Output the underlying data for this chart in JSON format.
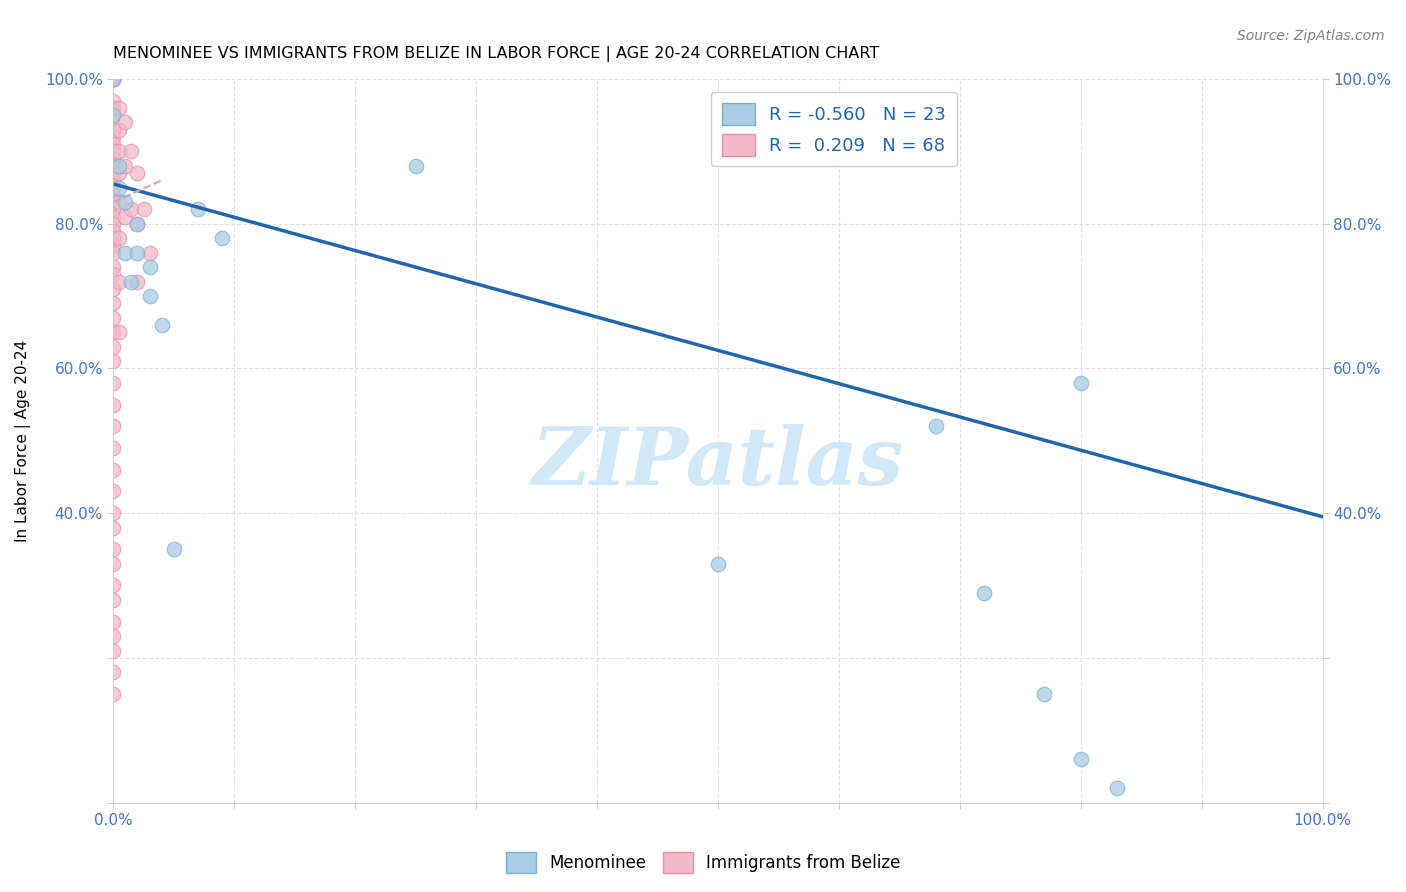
{
  "title": "MENOMINEE VS IMMIGRANTS FROM BELIZE IN LABOR FORCE | AGE 20-24 CORRELATION CHART",
  "source": "Source: ZipAtlas.com",
  "xlabel": "",
  "ylabel": "In Labor Force | Age 20-24",
  "xlim": [
    0,
    1
  ],
  "ylim": [
    0,
    1
  ],
  "xtick_labels": [
    "0.0%",
    "",
    "",
    "",
    "",
    "",
    "",
    "",
    "",
    "",
    "100.0%"
  ],
  "xtick_vals": [
    0.0,
    0.1,
    0.2,
    0.3,
    0.4,
    0.5,
    0.6,
    0.7,
    0.8,
    0.9,
    1.0
  ],
  "ytick_vals": [
    0.0,
    0.2,
    0.4,
    0.6,
    0.8,
    1.0
  ],
  "ytick_labels_left": [
    "",
    "",
    "40.0%",
    "60.0%",
    "80.0%",
    "100.0%"
  ],
  "ytick_labels_right": [
    "",
    "",
    "40.0%",
    "60.0%",
    "80.0%",
    "100.0%"
  ],
  "blue_color": "#a8cce0",
  "pink_color": "#f4b8c8",
  "blue_edge": "#7bafd4",
  "pink_edge": "#e88fa8",
  "blue_label": "Menominee",
  "pink_label": "Immigrants from Belize",
  "R_blue": -0.56,
  "N_blue": 23,
  "R_pink": 0.209,
  "N_pink": 68,
  "blue_x": [
    0.0,
    0.0,
    0.005,
    0.005,
    0.01,
    0.01,
    0.015,
    0.02,
    0.02,
    0.03,
    0.03,
    0.04,
    0.05,
    0.07,
    0.09,
    0.25,
    0.5,
    0.68,
    0.72,
    0.77,
    0.8,
    0.8,
    0.83
  ],
  "blue_y": [
    1.0,
    0.95,
    0.88,
    0.85,
    0.83,
    0.76,
    0.72,
    0.8,
    0.76,
    0.74,
    0.7,
    0.66,
    0.35,
    0.82,
    0.78,
    0.88,
    0.33,
    0.52,
    0.29,
    0.15,
    0.58,
    0.06,
    0.02
  ],
  "pink_x": [
    0.0,
    0.0,
    0.0,
    0.0,
    0.0,
    0.0,
    0.0,
    0.0,
    0.0,
    0.0,
    0.0,
    0.0,
    0.0,
    0.0,
    0.0,
    0.0,
    0.0,
    0.0,
    0.0,
    0.0,
    0.0,
    0.0,
    0.0,
    0.0,
    0.0,
    0.0,
    0.0,
    0.0,
    0.0,
    0.0,
    0.0,
    0.0,
    0.0,
    0.0,
    0.0,
    0.0,
    0.0,
    0.0,
    0.0,
    0.0,
    0.0,
    0.0,
    0.0,
    0.0,
    0.0,
    0.0,
    0.0,
    0.0,
    0.0,
    0.0,
    0.005,
    0.005,
    0.005,
    0.005,
    0.005,
    0.005,
    0.005,
    0.005,
    0.01,
    0.01,
    0.01,
    0.015,
    0.015,
    0.02,
    0.02,
    0.02,
    0.025,
    0.03
  ],
  "pink_y": [
    1.0,
    1.0,
    1.0,
    1.0,
    0.97,
    0.96,
    0.95,
    0.93,
    0.92,
    0.91,
    0.9,
    0.89,
    0.88,
    0.87,
    0.86,
    0.85,
    0.84,
    0.83,
    0.82,
    0.81,
    0.8,
    0.79,
    0.78,
    0.77,
    0.76,
    0.74,
    0.73,
    0.71,
    0.69,
    0.67,
    0.65,
    0.63,
    0.61,
    0.58,
    0.55,
    0.52,
    0.49,
    0.46,
    0.43,
    0.4,
    0.38,
    0.35,
    0.33,
    0.3,
    0.28,
    0.25,
    0.23,
    0.21,
    0.18,
    0.15,
    0.96,
    0.93,
    0.9,
    0.87,
    0.83,
    0.78,
    0.72,
    0.65,
    0.94,
    0.88,
    0.81,
    0.9,
    0.82,
    0.87,
    0.8,
    0.72,
    0.82,
    0.76
  ],
  "trend_line_blue_x0": 0.0,
  "trend_line_blue_y0": 0.855,
  "trend_line_blue_x1": 1.0,
  "trend_line_blue_y1": 0.395,
  "trend_line_pink_x0": 0.0,
  "trend_line_pink_y0": 0.83,
  "trend_line_pink_x1": 0.04,
  "trend_line_pink_y1": 0.86,
  "watermark": "ZIPatlas",
  "watermark_color": "#d0e8f8",
  "grid_color": "#e0e0e0",
  "background": "#ffffff"
}
